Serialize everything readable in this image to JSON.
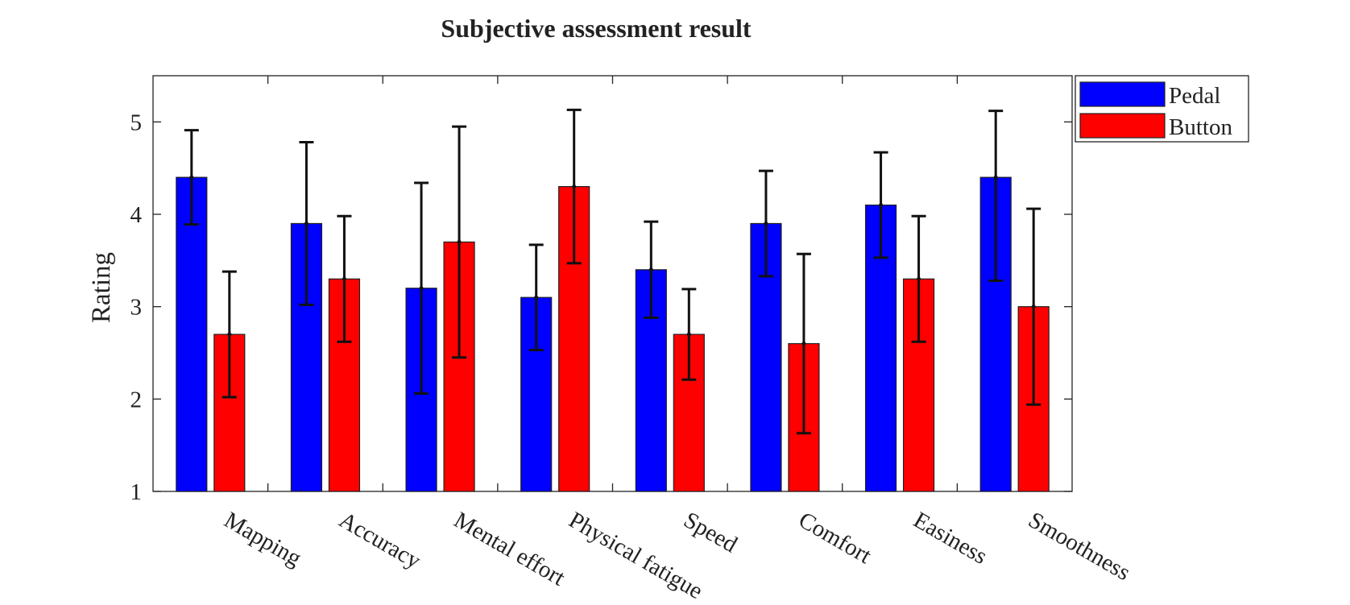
{
  "chart_data": {
    "type": "bar",
    "title": "Subjective assessment result",
    "xlabel": "",
    "ylabel": "Rating",
    "ylim": [
      1,
      5.5
    ],
    "yticks": [
      1,
      2,
      3,
      4,
      5
    ],
    "grid": false,
    "legend_position": "outside-top-right",
    "categories": [
      "Mapping",
      "Accuracy",
      "Mental effort",
      "Physical fatigue",
      "Speed",
      "Comfort",
      "Easiness",
      "Smoothness"
    ],
    "series": [
      {
        "name": "Pedal",
        "color": "#0000ff",
        "values": [
          4.4,
          3.9,
          3.2,
          3.1,
          3.4,
          3.9,
          4.1,
          4.4
        ],
        "error_low": [
          3.89,
          3.02,
          2.06,
          2.53,
          2.88,
          3.33,
          3.53,
          3.28
        ],
        "error_high": [
          4.91,
          4.78,
          4.34,
          3.67,
          3.92,
          4.47,
          4.67,
          5.12
        ]
      },
      {
        "name": "Button",
        "color": "#ff0000",
        "values": [
          2.7,
          3.3,
          3.7,
          4.3,
          2.7,
          2.6,
          3.3,
          3.0
        ],
        "error_low": [
          2.02,
          2.62,
          2.45,
          3.47,
          2.21,
          1.63,
          2.62,
          1.94
        ],
        "error_high": [
          3.38,
          3.98,
          4.95,
          5.13,
          3.19,
          3.57,
          3.98,
          4.06
        ]
      }
    ]
  }
}
